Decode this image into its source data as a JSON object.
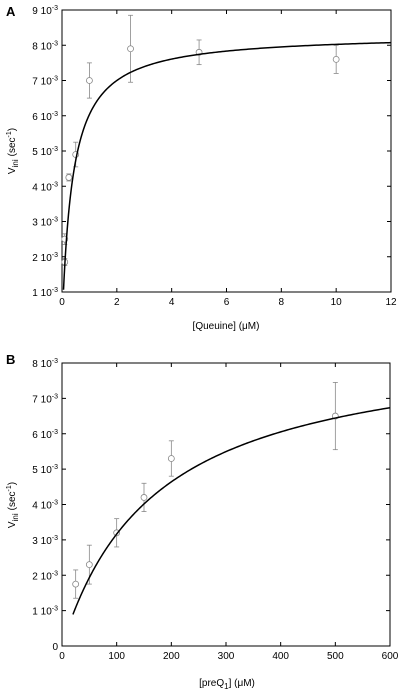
{
  "chart_data": [
    {
      "type": "scatter",
      "panel_label": "A",
      "xlabel": "[Queuine] (μM)",
      "ylabel_main": "V",
      "ylabel_sub": "ini",
      "ylabel_unit_pre": "(sec",
      "ylabel_unit_sup": "-1",
      "ylabel_unit_post": ")",
      "xlim": [
        0,
        12
      ],
      "ylim": [
        0.001,
        0.009
      ],
      "x_ticks": [
        0,
        2,
        4,
        6,
        8,
        10,
        12
      ],
      "x_tick_labels": [
        "0",
        "2",
        "4",
        "6",
        "8",
        "10",
        "12"
      ],
      "y_ticks": [
        0.001,
        0.002,
        0.003,
        0.004,
        0.005,
        0.006,
        0.007,
        0.008,
        0.009
      ],
      "y_tick_labels": [
        {
          "mant": "1",
          "exp": "-3"
        },
        {
          "mant": "2",
          "exp": "-3"
        },
        {
          "mant": "3",
          "exp": "-3"
        },
        {
          "mant": "4",
          "exp": "-3"
        },
        {
          "mant": "5",
          "exp": "-3"
        },
        {
          "mant": "6",
          "exp": "-3"
        },
        {
          "mant": "7",
          "exp": "-3"
        },
        {
          "mant": "8",
          "exp": "-3"
        },
        {
          "mant": "9",
          "exp": "-3"
        }
      ],
      "points": [
        {
          "x": 0.1,
          "y": 0.00185,
          "err": 0.0001
        },
        {
          "x": 0.1,
          "y": 0.0025,
          "err": 0.00015
        },
        {
          "x": 0.25,
          "y": 0.00425,
          "err": 0.0001
        },
        {
          "x": 0.5,
          "y": 0.0049,
          "err": 0.00035
        },
        {
          "x": 1.0,
          "y": 0.007,
          "err": 0.0005
        },
        {
          "x": 2.5,
          "y": 0.0079,
          "err": 0.00095
        },
        {
          "x": 5.0,
          "y": 0.0078,
          "err": 0.00035
        },
        {
          "x": 10.0,
          "y": 0.0076,
          "err": 0.0004
        }
      ],
      "fit": {
        "model": "michaelis-menten",
        "vmax": 0.00833,
        "km": 0.38,
        "x_start": 0.001
      }
    },
    {
      "type": "scatter",
      "panel_label": "B",
      "xlabel_pre": "[preQ",
      "xlabel_sub": "1",
      "xlabel_post": "] (μM)",
      "ylabel_main": "V",
      "ylabel_sub": "ini",
      "ylabel_unit_pre": "(sec",
      "ylabel_unit_sup": "-1",
      "ylabel_unit_post": ")",
      "xlim": [
        0,
        600
      ],
      "ylim": [
        0,
        0.008
      ],
      "x_ticks": [
        0,
        100,
        200,
        300,
        400,
        500,
        600
      ],
      "x_tick_labels": [
        "0",
        "100",
        "200",
        "300",
        "400",
        "500",
        "600"
      ],
      "y_ticks": [
        0,
        0.001,
        0.002,
        0.003,
        0.004,
        0.005,
        0.006,
        0.007,
        0.008
      ],
      "y_tick_labels": [
        {
          "mant": "0",
          "exp": ""
        },
        {
          "mant": "1",
          "exp": "-3"
        },
        {
          "mant": "2",
          "exp": "-3"
        },
        {
          "mant": "3",
          "exp": "-3"
        },
        {
          "mant": "4",
          "exp": "-3"
        },
        {
          "mant": "5",
          "exp": "-3"
        },
        {
          "mant": "6",
          "exp": "-3"
        },
        {
          "mant": "7",
          "exp": "-3"
        },
        {
          "mant": "8",
          "exp": "-3"
        }
      ],
      "points": [
        {
          "x": 25,
          "y": 0.00175,
          "err": 0.0004
        },
        {
          "x": 50,
          "y": 0.0023,
          "err": 0.00055
        },
        {
          "x": 100,
          "y": 0.0032,
          "err": 0.0004
        },
        {
          "x": 150,
          "y": 0.0042,
          "err": 0.0004
        },
        {
          "x": 200,
          "y": 0.0053,
          "err": 0.0005
        },
        {
          "x": 500,
          "y": 0.0065,
          "err": 0.00095
        }
      ],
      "fit": {
        "model": "michaelis-menten",
        "vmax": 0.0087,
        "km": 175,
        "x_start": 20
      }
    }
  ]
}
